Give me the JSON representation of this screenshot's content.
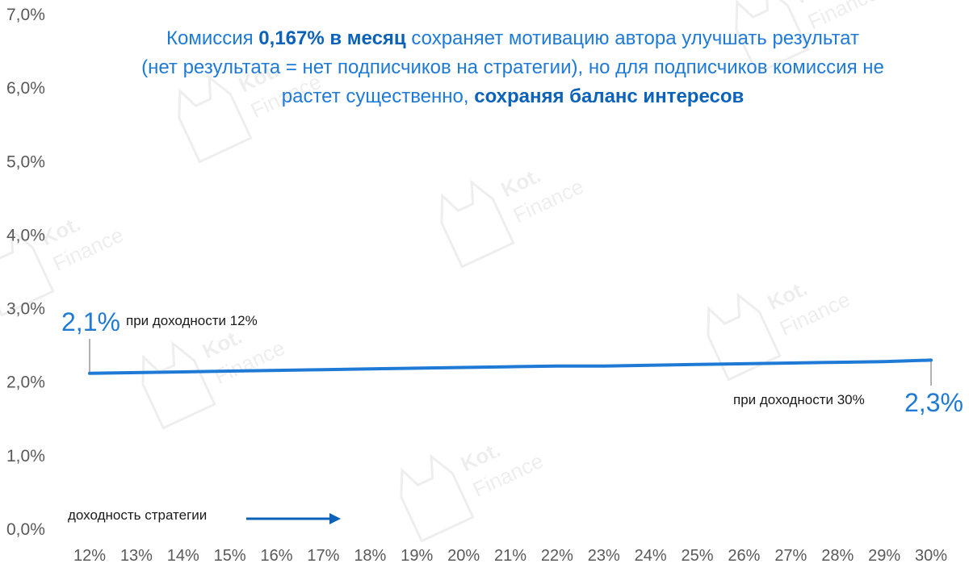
{
  "chart_data": {
    "type": "line",
    "x": [
      "12%",
      "13%",
      "14%",
      "15%",
      "16%",
      "17%",
      "18%",
      "19%",
      "20%",
      "21%",
      "22%",
      "23%",
      "24%",
      "25%",
      "26%",
      "27%",
      "28%",
      "29%",
      "30%"
    ],
    "series": [
      {
        "values": [
          2.12,
          2.13,
          2.14,
          2.15,
          2.16,
          2.17,
          2.18,
          2.19,
          2.2,
          2.21,
          2.22,
          2.22,
          2.23,
          2.24,
          2.25,
          2.26,
          2.27,
          2.28,
          2.3
        ]
      }
    ],
    "yticks": [
      "0,0%",
      "1,0%",
      "2,0%",
      "3,0%",
      "4,0%",
      "5,0%",
      "6,0%",
      "7,0%"
    ],
    "ylim": [
      0,
      7
    ],
    "grid": false,
    "color": "#1f7ad6"
  },
  "caption": {
    "t1": "Комиссия ",
    "b1": "0,167%  в месяц",
    "t2": " сохраняет мотивацию автора улучшать результат",
    "t3": "(нет результата = нет подписчиков на стратегии), но для подписчиков комиссия не",
    "t4": "растет существенно, ",
    "b2": "сохраняя баланс интересов"
  },
  "annotations": {
    "start_value": "2,1%",
    "start_note": "при доходности 12%",
    "end_value": "2,3%",
    "end_note": "при доходности 30%",
    "axis_note": "доходность стратегии"
  },
  "watermark": {
    "line1": "Kot.",
    "line2": "Finance"
  }
}
